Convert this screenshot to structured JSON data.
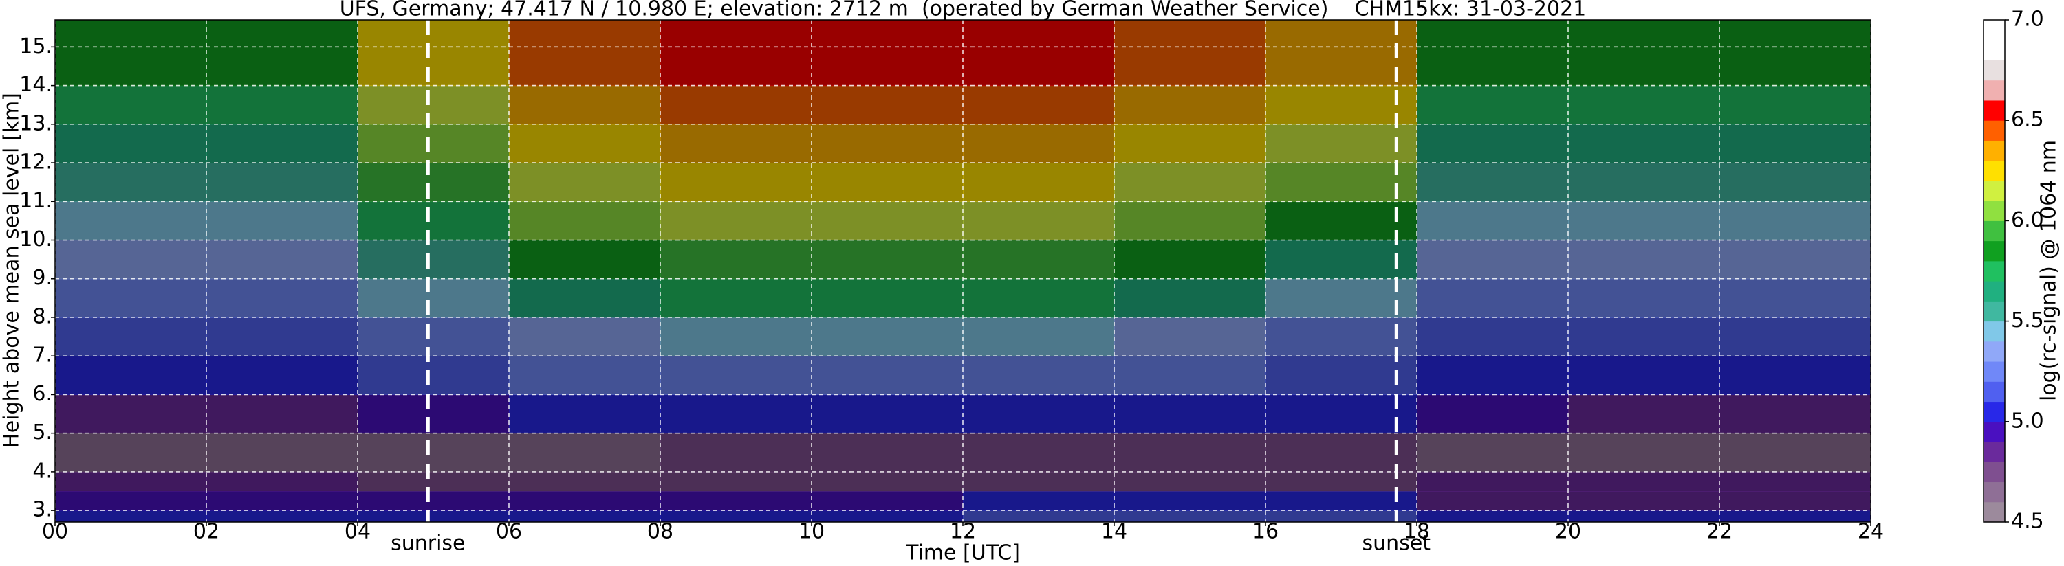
{
  "chart_data": {
    "type": "heatmap",
    "title": "UFS, Germany; 47.417 N / 10.980 E; elevation: 2712 m  (operated by German Weather Service)    CHM15kx: 31-03-2021",
    "x_label": "Time [UTC]",
    "y_label": "Height above mean sea level [km]",
    "colorbar_label": "log(rc-signal) @ 1064 nm",
    "xlim": [
      0,
      24
    ],
    "ylim": [
      2.7,
      15.7
    ],
    "xticks": [
      {
        "value": 0,
        "label": "00"
      },
      {
        "value": 2,
        "label": "02"
      },
      {
        "value": 4,
        "label": "04"
      },
      {
        "value": 6,
        "label": "06"
      },
      {
        "value": 8,
        "label": "08"
      },
      10,
      12,
      14,
      16,
      18,
      20,
      22,
      24
    ],
    "yticks": [
      {
        "value": 3,
        "label": "3."
      },
      {
        "value": 4,
        "label": "4."
      },
      {
        "value": 5,
        "label": "5."
      },
      {
        "value": 6,
        "label": "6."
      },
      {
        "value": 7,
        "label": "7."
      },
      {
        "value": 8,
        "label": "8."
      },
      {
        "value": 9,
        "label": "9."
      },
      {
        "value": 10,
        "label": "10."
      },
      {
        "value": 11,
        "label": "11."
      },
      {
        "value": 12,
        "label": "12."
      },
      {
        "value": 13,
        "label": "13."
      },
      {
        "value": 14,
        "label": "14."
      },
      {
        "value": 15,
        "label": "15."
      }
    ],
    "grid": true,
    "x_edges": [
      0,
      2,
      4,
      6,
      8,
      10,
      12,
      14,
      16,
      18,
      20,
      22,
      24
    ],
    "y_edges": [
      2.7,
      3,
      3.5,
      4,
      5,
      6,
      7,
      8,
      9,
      10,
      11,
      12,
      13,
      14,
      15.7
    ],
    "z": [
      [
        5.0,
        5.0,
        5.0,
        5.0,
        5.0,
        5.0,
        5.1,
        5.1,
        5.1,
        5.0,
        5.0,
        5.0
      ],
      [
        4.9,
        4.9,
        4.9,
        4.9,
        4.9,
        4.9,
        5.0,
        5.0,
        5.0,
        4.8,
        4.8,
        4.8
      ],
      [
        4.8,
        4.8,
        4.7,
        4.7,
        4.7,
        4.7,
        4.7,
        4.7,
        4.7,
        4.8,
        4.8,
        4.8
      ],
      [
        4.6,
        4.6,
        4.6,
        4.6,
        4.7,
        4.7,
        4.7,
        4.7,
        4.7,
        4.6,
        4.6,
        4.6
      ],
      [
        4.8,
        4.8,
        4.9,
        5.0,
        5.0,
        5.0,
        5.0,
        5.0,
        5.0,
        4.9,
        4.8,
        4.8
      ],
      [
        5.0,
        5.0,
        5.1,
        5.2,
        5.2,
        5.2,
        5.2,
        5.2,
        5.1,
        5.0,
        5.0,
        5.0
      ],
      [
        5.1,
        5.1,
        5.2,
        5.3,
        5.4,
        5.4,
        5.4,
        5.3,
        5.2,
        5.1,
        5.1,
        5.1
      ],
      [
        5.2,
        5.2,
        5.4,
        5.6,
        5.7,
        5.7,
        5.7,
        5.6,
        5.4,
        5.2,
        5.2,
        5.2
      ],
      [
        5.3,
        5.3,
        5.5,
        5.8,
        5.9,
        5.9,
        5.9,
        5.8,
        5.6,
        5.3,
        5.3,
        5.3
      ],
      [
        5.4,
        5.4,
        5.7,
        6.0,
        6.1,
        6.1,
        6.1,
        6.0,
        5.8,
        5.4,
        5.4,
        5.4
      ],
      [
        5.5,
        5.5,
        5.9,
        6.1,
        6.2,
        6.2,
        6.2,
        6.1,
        6.0,
        5.5,
        5.5,
        5.5
      ],
      [
        5.6,
        5.6,
        6.0,
        6.2,
        6.3,
        6.3,
        6.3,
        6.2,
        6.1,
        5.6,
        5.6,
        5.6
      ],
      [
        5.7,
        5.7,
        6.1,
        6.3,
        6.4,
        6.4,
        6.4,
        6.3,
        6.2,
        5.7,
        5.7,
        5.7
      ],
      [
        5.8,
        5.8,
        6.2,
        6.4,
        6.5,
        6.5,
        6.5,
        6.4,
        6.3,
        5.8,
        5.8,
        5.8
      ]
    ],
    "clim": [
      4.5,
      7.0
    ],
    "cticks": [
      4.5,
      {
        "value": 5,
        "label": "5.0"
      },
      5.5,
      {
        "value": 6,
        "label": "6.0"
      },
      6.5,
      {
        "value": 7,
        "label": "7.0"
      }
    ],
    "colormap": [
      "#9c8a9c",
      "#8f6f96",
      "#7f4f90",
      "#6a2a9c",
      "#4a10c0",
      "#2828e8",
      "#5060f0",
      "#7088f8",
      "#90a8f8",
      "#80c8e8",
      "#40b8a0",
      "#20b080",
      "#20c060",
      "#10a020",
      "#40c040",
      "#90e040",
      "#d0f040",
      "#ffe000",
      "#ffb000",
      "#ff6000",
      "#ff0000",
      "#f0b0b0",
      "#e8e0e0",
      "#ffffff",
      "#ffffff"
    ],
    "annotations": [
      {
        "text": "sunrise",
        "x": 4.93
      },
      {
        "text": "sunset",
        "x": 17.73
      }
    ]
  }
}
